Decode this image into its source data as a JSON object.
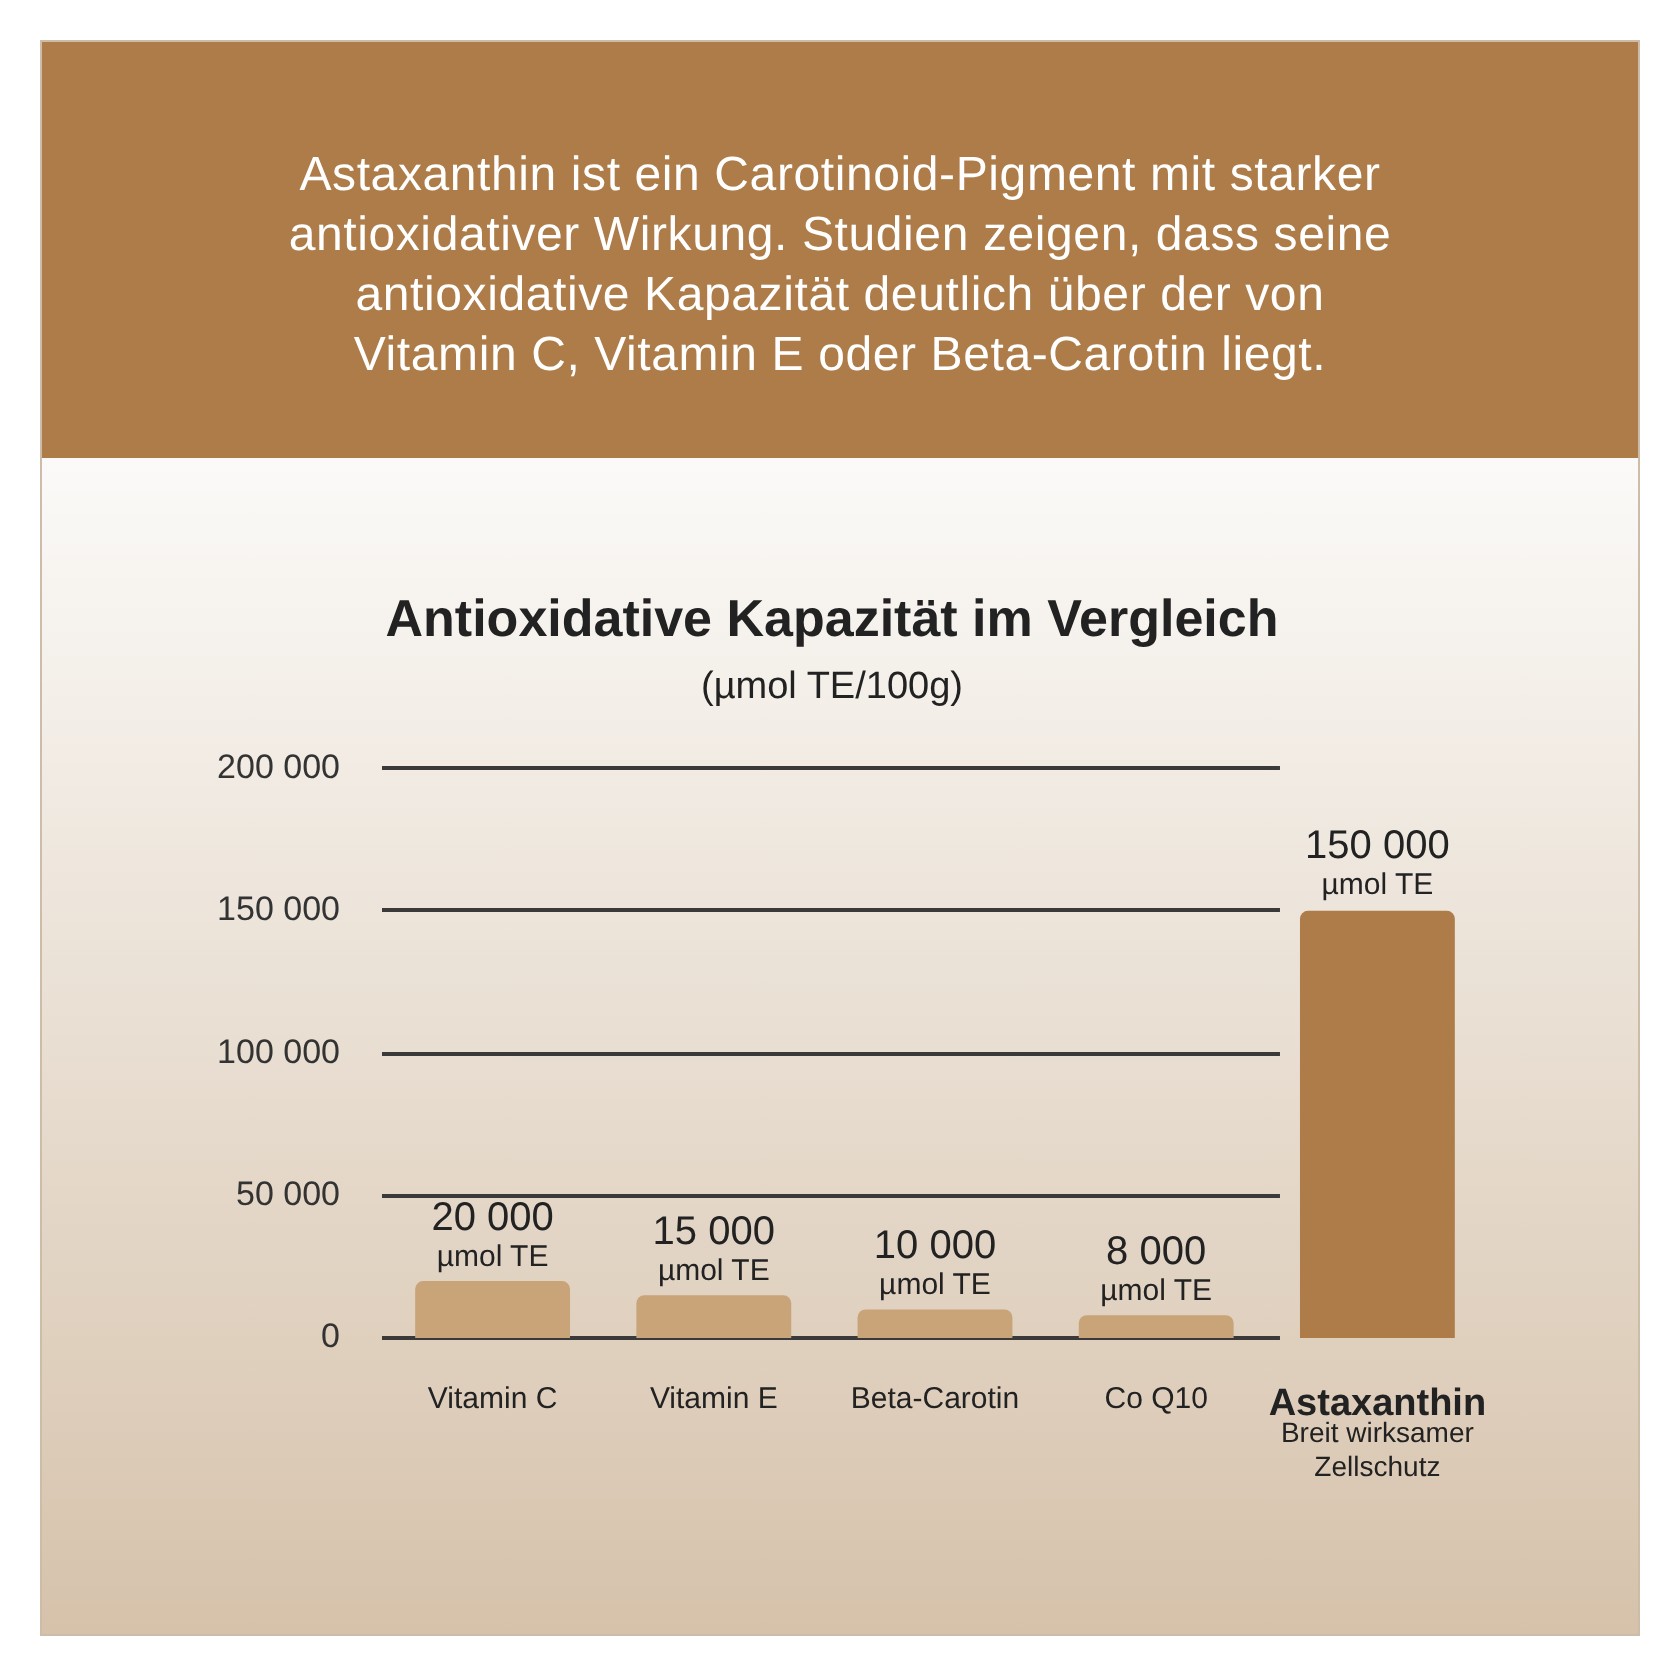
{
  "chart_data": {
    "type": "bar",
    "title": "Antioxidative Kapazität im Vergleich",
    "subtitle": "(µmol TE/100g)",
    "annotations": [
      "Astaxanthin ist ein Carotinoid-Pigment mit starker antioxidativer Wirkung. Studien zeigen, dass seine antioxidative Kapazität deutlich über der von Vitamin C, Vitamin E oder Beta-Carotin liegt.",
      "Breit wirksamer Zellschutz"
    ],
    "categories": [
      "Vitamin C",
      "Vitamin E",
      "Beta-Carotin",
      "Co Q10",
      "Astaxanthin"
    ],
    "values": [
      20000,
      15000,
      10000,
      8000,
      150000
    ],
    "colors": [
      "#c8a478",
      "#c8a478",
      "#c8a478",
      "#c8a478",
      "#ad7c48"
    ],
    "value_labels": [
      "20 000\nµmol TE",
      "15 000\nµmol TE",
      "10 000\nµmol TE",
      "8 000\nµmol TE",
      "150 000\nµmol TE"
    ],
    "ylim": [
      0,
      200000
    ],
    "yticks": [
      0,
      {
        "value": 50000,
        "label": "50 000"
      },
      {
        "value": 100000,
        "label": "100 000"
      },
      {
        "value": 150000,
        "label": "150 000"
      },
      {
        "value": 200000,
        "label": "200 000"
      }
    ],
    "grid": "y"
  }
}
